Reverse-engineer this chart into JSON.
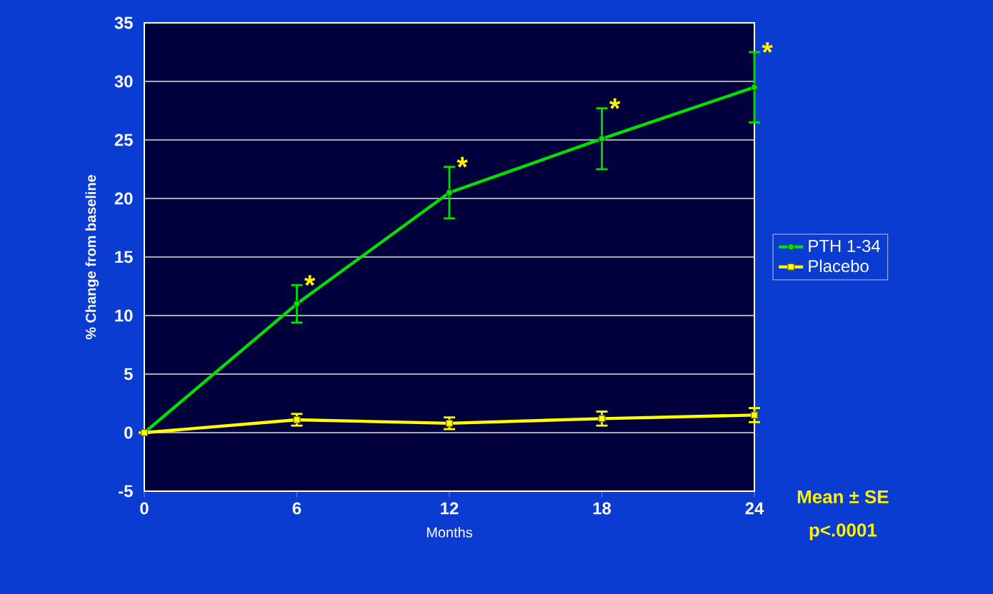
{
  "chart_data": {
    "type": "line",
    "xlabel": "Months",
    "ylabel": "% Change from baseline",
    "x": [
      0,
      6,
      12,
      18,
      24
    ],
    "series": [
      {
        "name": "PTH 1-34",
        "color": "#00e000",
        "values": [
          0,
          11,
          20.5,
          25.1,
          29.5
        ],
        "errors": [
          null,
          1.6,
          2.2,
          2.6,
          3
        ],
        "marker": "circle"
      },
      {
        "name": "Placebo",
        "color": "#ffff00",
        "values": [
          0,
          1.1,
          0.8,
          1.2,
          1.5
        ],
        "errors": [
          null,
          0.5,
          0.5,
          0.6,
          0.6
        ],
        "marker": "square"
      }
    ],
    "xlim": [
      0,
      24
    ],
    "xticks": [
      0,
      6,
      12,
      18,
      24
    ],
    "ylim": [
      -5,
      35
    ],
    "yticks": [
      -5,
      0,
      5,
      10,
      15,
      20,
      25,
      30,
      35
    ],
    "grid": "y",
    "legend": "right",
    "line_style": "solid",
    "annotations": [
      {
        "text": "*",
        "x": 6,
        "y": 12.6
      },
      {
        "text": "*",
        "x": 12,
        "y": 22.7
      },
      {
        "text": "*",
        "x": 18,
        "y": 27.7
      },
      {
        "text": "*",
        "x": 24,
        "y": 32.5
      },
      "Mean ± SE",
      "p<.0001"
    ]
  }
}
